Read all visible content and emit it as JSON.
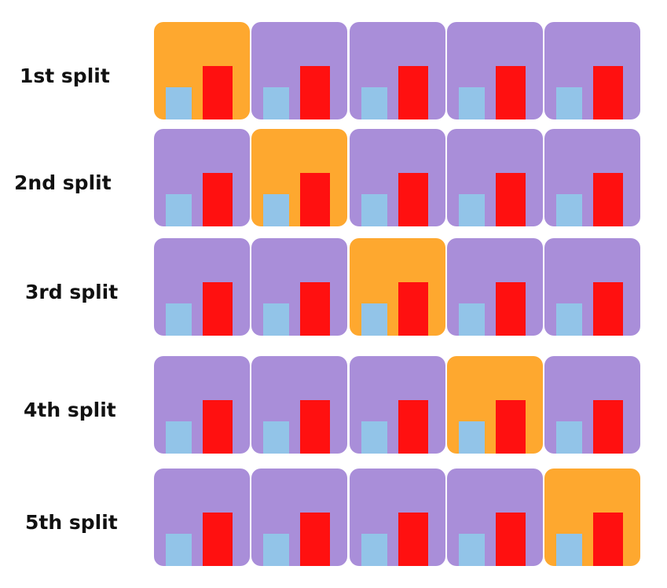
{
  "colors": {
    "train_fold": "#a98ed9",
    "test_fold": "#fea82f",
    "bar_light": "#92c4e8",
    "bar_dark": "#ff1010"
  },
  "splits": [
    {
      "label": "1st split",
      "test_index": 0
    },
    {
      "label": "2nd split",
      "test_index": 1
    },
    {
      "label": "3rd split",
      "test_index": 2
    },
    {
      "label": "4th split",
      "test_index": 3
    },
    {
      "label": "5th split",
      "test_index": 4
    }
  ],
  "folds_per_split": 5
}
